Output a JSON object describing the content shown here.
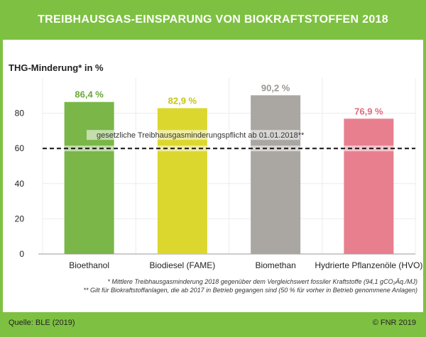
{
  "title": "TREIBHAUSGAS-EINSPARUNG VON BIOKRAFTSTOFFEN 2018",
  "footer": {
    "source": "Quelle: BLE (2019)",
    "copyright": "© FNR 2019",
    "note1": "* Mittlere Treibhausgasminderung 2018 gegenüber dem Vergleichswert fossiler Kraftstoffe (94,1 gCO₂Äq./MJ)",
    "note2": "** Gilt für Biokraftstoffanlagen, die ab 2017 in Betrieb gegangen sind (50 % für vorher in Betrieb genommene Anlagen)"
  },
  "chart_data": {
    "type": "bar",
    "title": "TREIBHAUSGAS-EINSPARUNG VON BIOKRAFTSTOFFEN 2018",
    "ylabel": "THG-Minderung* in %",
    "xlabel": "",
    "ylim": [
      0,
      100
    ],
    "yticks": [
      0,
      20,
      40,
      60,
      80
    ],
    "categories": [
      "Bioethanol",
      "Biodiesel (FAME)",
      "Biomethan",
      "Hydrierte Pflanzenöle (HVO)"
    ],
    "values": [
      86.4,
      82.9,
      90.2,
      76.9
    ],
    "value_labels": [
      "86,4 %",
      "82,9 %",
      "90,2 %",
      "76,9 %"
    ],
    "colors": [
      "#7ab648",
      "#dcd72e",
      "#aaa6a2",
      "#e87f8f"
    ],
    "label_colors": [
      "#6aa83a",
      "#c8c416",
      "#9a9693",
      "#e06b7e"
    ],
    "threshold": {
      "value": 60,
      "label": "gesetzliche Treibhausgasminderungspflicht ab 01.01.2018**",
      "style": "dashed"
    },
    "grid": true
  }
}
